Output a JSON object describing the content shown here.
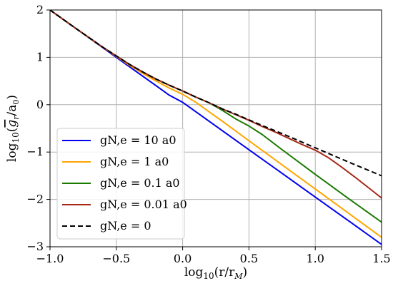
{
  "chart_data": {
    "type": "line",
    "xlabel": "log10(r/rM)",
    "ylabel": "log10(ḡr/a0)",
    "xlim": [
      -1.0,
      1.5
    ],
    "ylim": [
      -3,
      2
    ],
    "grid": true,
    "legend_position": "lower-left",
    "x_ticks": [
      {
        "value": -1.0,
        "label": "−1.0"
      },
      {
        "value": -0.5,
        "label": "−0.5"
      },
      {
        "value": 0.0,
        "label": "0.0"
      },
      {
        "value": 0.5,
        "label": "0.5"
      },
      {
        "value": 1.0,
        "label": "1.0"
      },
      {
        "value": 1.5,
        "label": "1.5"
      }
    ],
    "y_ticks": [
      {
        "value": 2,
        "label": "2"
      },
      {
        "value": 1,
        "label": "1"
      },
      {
        "value": 0,
        "label": "0"
      },
      {
        "value": -1,
        "label": "−1"
      },
      {
        "value": -2,
        "label": "−2"
      },
      {
        "value": -3,
        "label": "−3"
      }
    ],
    "series": [
      {
        "name": "gN,e = 10 a0",
        "color": "#0000ee",
        "dash": "solid",
        "points": [
          [
            -1.0,
            2.0
          ],
          [
            -0.8,
            1.6
          ],
          [
            -0.6,
            1.2
          ],
          [
            -0.5,
            1.0
          ],
          [
            -0.4,
            0.8
          ],
          [
            -0.3,
            0.6
          ],
          [
            -0.2,
            0.4
          ],
          [
            -0.1,
            0.2
          ],
          [
            0.0,
            0.05
          ],
          [
            0.25,
            -0.45
          ],
          [
            0.5,
            -0.95
          ],
          [
            0.75,
            -1.45
          ],
          [
            1.0,
            -1.95
          ],
          [
            1.25,
            -2.45
          ],
          [
            1.5,
            -2.95
          ]
        ]
      },
      {
        "name": "gN,e = 1 a0",
        "color": "#ffa500",
        "dash": "solid",
        "points": [
          [
            -1.0,
            2.0
          ],
          [
            -0.8,
            1.6
          ],
          [
            -0.6,
            1.21
          ],
          [
            -0.5,
            1.02
          ],
          [
            -0.4,
            0.83
          ],
          [
            -0.3,
            0.66
          ],
          [
            -0.2,
            0.5
          ],
          [
            -0.1,
            0.35
          ],
          [
            0.0,
            0.22
          ],
          [
            0.1,
            0.05
          ],
          [
            0.2,
            -0.15
          ],
          [
            0.3,
            -0.35
          ],
          [
            0.5,
            -0.76
          ],
          [
            0.75,
            -1.27
          ],
          [
            1.0,
            -1.78
          ],
          [
            1.25,
            -2.29
          ],
          [
            1.5,
            -2.8
          ]
        ]
      },
      {
        "name": "gN,e = 0.1 a0",
        "color": "#1a7a00",
        "dash": "solid",
        "points": [
          [
            -1.0,
            2.0
          ],
          [
            -0.8,
            1.6
          ],
          [
            -0.6,
            1.21
          ],
          [
            -0.5,
            1.03
          ],
          [
            -0.4,
            0.85
          ],
          [
            -0.3,
            0.69
          ],
          [
            -0.2,
            0.54
          ],
          [
            -0.1,
            0.41
          ],
          [
            0.0,
            0.29
          ],
          [
            0.1,
            0.16
          ],
          [
            0.2,
            0.04
          ],
          [
            0.3,
            -0.12
          ],
          [
            0.4,
            -0.3
          ],
          [
            0.5,
            -0.45
          ],
          [
            0.6,
            -0.63
          ],
          [
            0.75,
            -0.95
          ],
          [
            1.0,
            -1.47
          ],
          [
            1.25,
            -1.98
          ],
          [
            1.5,
            -2.48
          ]
        ]
      },
      {
        "name": "gN,e = 0.01 a0",
        "color": "#a52a1a",
        "dash": "solid",
        "points": [
          [
            -1.0,
            2.0
          ],
          [
            -0.8,
            1.6
          ],
          [
            -0.6,
            1.21
          ],
          [
            -0.5,
            1.03
          ],
          [
            -0.4,
            0.85
          ],
          [
            -0.3,
            0.69
          ],
          [
            -0.2,
            0.54
          ],
          [
            -0.1,
            0.41
          ],
          [
            0.0,
            0.29
          ],
          [
            0.1,
            0.16
          ],
          [
            0.2,
            0.04
          ],
          [
            0.3,
            -0.09
          ],
          [
            0.4,
            -0.21
          ],
          [
            0.5,
            -0.33
          ],
          [
            0.6,
            -0.46
          ],
          [
            0.7,
            -0.58
          ],
          [
            0.8,
            -0.71
          ],
          [
            0.9,
            -0.84
          ],
          [
            1.0,
            -0.96
          ],
          [
            1.1,
            -1.12
          ],
          [
            1.2,
            -1.32
          ],
          [
            1.3,
            -1.53
          ],
          [
            1.4,
            -1.75
          ],
          [
            1.5,
            -1.97
          ]
        ]
      },
      {
        "name": "gN,e = 0",
        "color": "#000000",
        "dash": "dashed",
        "points": [
          [
            -1.0,
            2.0
          ],
          [
            -0.8,
            1.6
          ],
          [
            -0.6,
            1.21
          ],
          [
            -0.5,
            1.03
          ],
          [
            -0.4,
            0.85
          ],
          [
            -0.3,
            0.69
          ],
          [
            -0.2,
            0.54
          ],
          [
            -0.1,
            0.41
          ],
          [
            0.0,
            0.29
          ],
          [
            0.1,
            0.16
          ],
          [
            0.2,
            0.04
          ],
          [
            0.3,
            -0.09
          ],
          [
            0.4,
            -0.2
          ],
          [
            0.5,
            -0.32
          ],
          [
            0.6,
            -0.44
          ],
          [
            0.75,
            -0.61
          ],
          [
            1.0,
            -0.91
          ],
          [
            1.25,
            -1.21
          ],
          [
            1.5,
            -1.5
          ]
        ]
      }
    ]
  }
}
